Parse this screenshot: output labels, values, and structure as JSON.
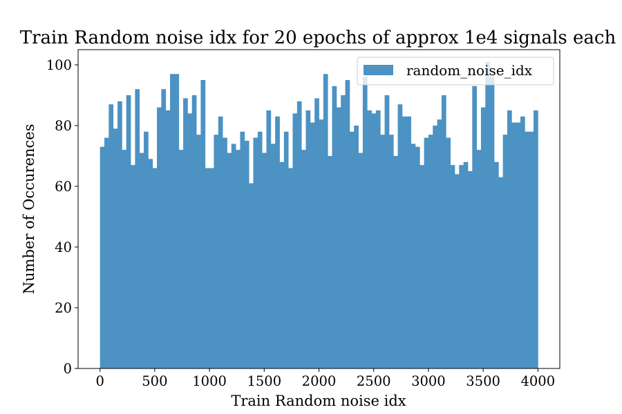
{
  "chart_data": {
    "type": "bar",
    "title": "Train Random noise idx for 20 epochs of approx 1e4 signals each",
    "xlabel": "Train Random noise idx",
    "ylabel": "Number of Occurences",
    "xlim": [
      -200,
      4200
    ],
    "ylim": [
      0,
      105
    ],
    "xticks": [
      0,
      500,
      1000,
      1500,
      2000,
      2500,
      3000,
      3500,
      4000
    ],
    "yticks": [
      0,
      20,
      40,
      60,
      80,
      100
    ],
    "grid": false,
    "legend": {
      "position": "top-right"
    },
    "series": [
      {
        "name": "random_noise_idx",
        "color": "#4c92c3",
        "bin_range": [
          0,
          4000
        ],
        "values": [
          73,
          76,
          87,
          79,
          88,
          72,
          90,
          67,
          92,
          71,
          78,
          69,
          66,
          86,
          92,
          85,
          97,
          97,
          72,
          89,
          84,
          90,
          77,
          95,
          66,
          66,
          77,
          83,
          76,
          71,
          74,
          72,
          78,
          75,
          61,
          76,
          78,
          71,
          85,
          74,
          83,
          68,
          78,
          66,
          84,
          88,
          72,
          85,
          81,
          89,
          82,
          97,
          70,
          93,
          86,
          90,
          95,
          78,
          80,
          71,
          96,
          85,
          84,
          85,
          77,
          90,
          77,
          70,
          87,
          83,
          83,
          74,
          73,
          67,
          76,
          77,
          80,
          82,
          90,
          76,
          67,
          64,
          67,
          68,
          65,
          93,
          72,
          86,
          101,
          96,
          68,
          63,
          77,
          85,
          81,
          81,
          83,
          78,
          78,
          85
        ]
      }
    ]
  }
}
